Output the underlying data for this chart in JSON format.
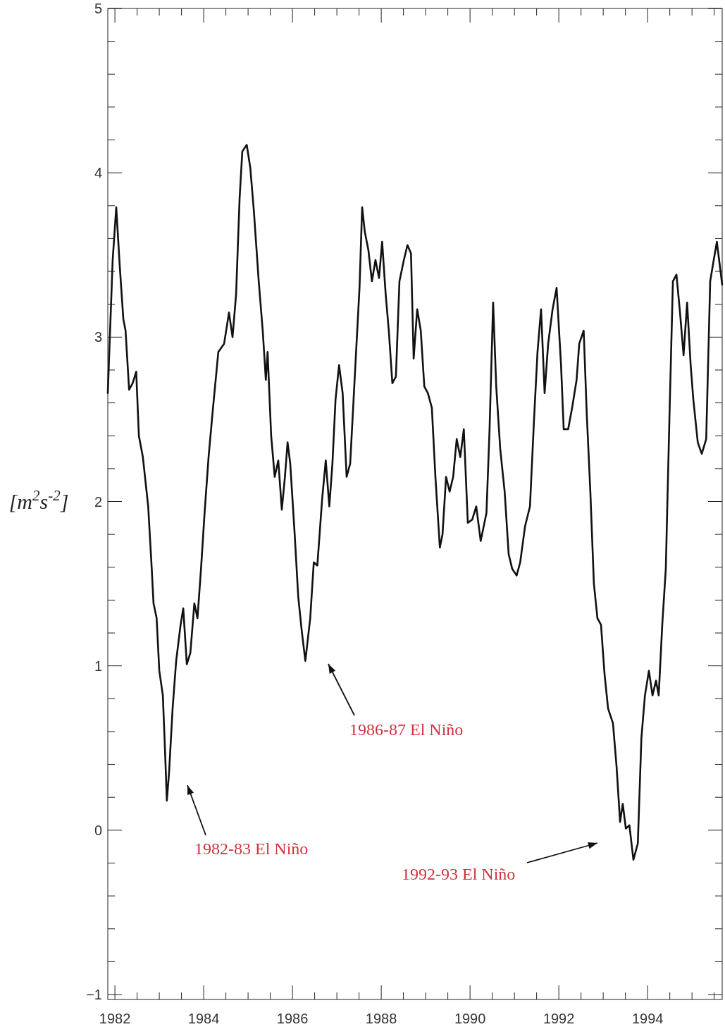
{
  "chart_data": {
    "type": "line",
    "ylabel": "[m$^{2}$s$^{-2}$]",
    "xlim": [
      1981.84,
      1995.68
    ],
    "ylim": [
      -1.03,
      5
    ],
    "xticks": [
      {
        "value": 1982,
        "label": "1982"
      },
      {
        "value": 1982.5,
        "label": null
      },
      {
        "value": 1983,
        "label": null
      },
      {
        "value": 1983.5,
        "label": null
      },
      {
        "value": 1984,
        "label": "1984"
      },
      {
        "value": 1984.5,
        "label": null
      },
      {
        "value": 1985,
        "label": null
      },
      {
        "value": 1985.5,
        "label": null
      },
      {
        "value": 1986,
        "label": "1986"
      },
      {
        "value": 1986.5,
        "label": null
      },
      {
        "value": 1987,
        "label": null
      },
      {
        "value": 1987.5,
        "label": null
      },
      {
        "value": 1988,
        "label": "1988"
      },
      {
        "value": 1988.5,
        "label": null
      },
      {
        "value": 1989,
        "label": null
      },
      {
        "value": 1989.5,
        "label": null
      },
      {
        "value": 1990,
        "label": "1990"
      },
      {
        "value": 1990.5,
        "label": null
      },
      {
        "value": 1991,
        "label": null
      },
      {
        "value": 1991.5,
        "label": null
      },
      {
        "value": 1992,
        "label": "1992"
      },
      {
        "value": 1992.5,
        "label": null
      },
      {
        "value": 1993,
        "label": null
      },
      {
        "value": 1993.5,
        "label": null
      },
      {
        "value": 1994,
        "label": "1994"
      },
      {
        "value": 1994.5,
        "label": null
      },
      {
        "value": 1995,
        "label": null
      },
      {
        "value": 1995.5,
        "label": null
      }
    ],
    "yticks": [
      {
        "value": -1,
        "label": "−1"
      },
      {
        "value": -0.8,
        "label": null
      },
      {
        "value": -0.6,
        "label": null
      },
      {
        "value": -0.4,
        "label": null
      },
      {
        "value": -0.2,
        "label": null
      },
      0,
      {
        "value": 0.2,
        "label": null
      },
      {
        "value": 0.4,
        "label": null
      },
      {
        "value": 0.6,
        "label": null
      },
      {
        "value": 0.8,
        "label": null
      },
      1,
      {
        "value": 1.2,
        "label": null
      },
      {
        "value": 1.4,
        "label": null
      },
      {
        "value": 1.6,
        "label": null
      },
      {
        "value": 1.8,
        "label": null
      },
      2,
      {
        "value": 2.2,
        "label": null
      },
      {
        "value": 2.4,
        "label": null
      },
      {
        "value": 2.6,
        "label": null
      },
      {
        "value": 2.8,
        "label": null
      },
      3,
      {
        "value": 3.2,
        "label": null
      },
      {
        "value": 3.4,
        "label": null
      },
      {
        "value": 3.6,
        "label": null
      },
      {
        "value": 3.8,
        "label": null
      },
      4,
      {
        "value": 4.2,
        "label": null
      },
      {
        "value": 4.4,
        "label": null
      },
      {
        "value": 4.6,
        "label": null
      },
      {
        "value": 4.8,
        "label": null
      },
      5
    ],
    "grid": false,
    "marker": "none",
    "line_style": "solid",
    "series": [
      {
        "color": "#111111",
        "x": [
          1981.84,
          1981.95,
          1982.03,
          1982.11,
          1982.19,
          1982.24,
          1982.32,
          1982.4,
          1982.48,
          1982.54,
          1982.63,
          1982.75,
          1982.83,
          1982.87,
          1982.94,
          1983.0,
          1983.08,
          1983.13,
          1983.17,
          1983.22,
          1983.3,
          1983.38,
          1983.48,
          1983.54,
          1983.62,
          1983.7,
          1983.79,
          1983.86,
          1983.94,
          1984.02,
          1984.11,
          1984.21,
          1984.33,
          1984.46,
          1984.57,
          1984.65,
          1984.73,
          1984.81,
          1984.87,
          1984.97,
          1985.05,
          1985.13,
          1985.24,
          1985.33,
          1985.4,
          1985.44,
          1985.52,
          1985.6,
          1985.68,
          1985.76,
          1985.83,
          1985.89,
          1985.95,
          1986.05,
          1986.13,
          1986.21,
          1986.29,
          1986.4,
          1986.48,
          1986.56,
          1986.67,
          1986.75,
          1986.83,
          1986.9,
          1986.97,
          1987.05,
          1987.13,
          1987.22,
          1987.3,
          1987.4,
          1987.51,
          1987.57,
          1987.63,
          1987.71,
          1987.79,
          1987.87,
          1987.95,
          1988.02,
          1988.1,
          1988.17,
          1988.25,
          1988.33,
          1988.41,
          1988.51,
          1988.59,
          1988.67,
          1988.73,
          1988.81,
          1988.89,
          1988.97,
          1989.05,
          1989.14,
          1989.22,
          1989.32,
          1989.38,
          1989.46,
          1989.54,
          1989.62,
          1989.7,
          1989.78,
          1989.86,
          1989.95,
          1990.05,
          1990.14,
          1990.24,
          1990.37,
          1990.44,
          1990.52,
          1990.59,
          1990.68,
          1990.78,
          1990.87,
          1990.95,
          1991.05,
          1991.13,
          1991.24,
          1991.35,
          1991.44,
          1991.52,
          1991.6,
          1991.68,
          1991.76,
          1991.86,
          1991.95,
          1992.05,
          1992.11,
          1992.21,
          1992.3,
          1992.4,
          1992.46,
          1992.56,
          1992.63,
          1992.71,
          1992.79,
          1992.87,
          1992.95,
          1993.03,
          1993.11,
          1993.22,
          1993.3,
          1993.38,
          1993.44,
          1993.51,
          1993.59,
          1993.68,
          1993.78,
          1993.86,
          1993.94,
          1994.03,
          1994.11,
          1994.19,
          1994.25,
          1994.33,
          1994.41,
          1994.49,
          1994.57,
          1994.65,
          1994.73,
          1994.81,
          1994.89,
          1994.97,
          1995.03,
          1995.13,
          1995.22,
          1995.32,
          1995.41,
          1995.49,
          1995.56,
          1995.68
        ],
        "values": [
          2.66,
          3.47,
          3.79,
          3.43,
          3.11,
          3.04,
          2.68,
          2.72,
          2.79,
          2.4,
          2.27,
          1.97,
          1.59,
          1.38,
          1.29,
          0.97,
          0.82,
          0.48,
          0.18,
          0.35,
          0.74,
          1.03,
          1.25,
          1.35,
          1.01,
          1.08,
          1.38,
          1.29,
          1.59,
          1.93,
          2.27,
          2.57,
          2.91,
          2.96,
          3.15,
          3.0,
          3.26,
          3.85,
          4.13,
          4.17,
          4.03,
          3.77,
          3.34,
          3.04,
          2.74,
          2.91,
          2.4,
          2.15,
          2.25,
          1.95,
          2.15,
          2.36,
          2.23,
          1.8,
          1.42,
          1.21,
          1.03,
          1.29,
          1.63,
          1.61,
          2.02,
          2.25,
          1.97,
          2.23,
          2.62,
          2.83,
          2.66,
          2.15,
          2.23,
          2.74,
          3.3,
          3.79,
          3.64,
          3.53,
          3.34,
          3.47,
          3.36,
          3.58,
          3.26,
          3.04,
          2.72,
          2.76,
          3.34,
          3.47,
          3.56,
          3.51,
          2.87,
          3.17,
          3.04,
          2.7,
          2.66,
          2.57,
          2.15,
          1.72,
          1.8,
          2.15,
          2.06,
          2.15,
          2.38,
          2.27,
          2.44,
          1.87,
          1.89,
          1.97,
          1.76,
          1.93,
          2.44,
          3.21,
          2.7,
          2.32,
          2.06,
          1.68,
          1.59,
          1.55,
          1.63,
          1.85,
          1.97,
          2.49,
          2.91,
          3.17,
          2.66,
          2.96,
          3.17,
          3.3,
          2.83,
          2.44,
          2.44,
          2.57,
          2.74,
          2.96,
          3.04,
          2.53,
          2.06,
          1.5,
          1.29,
          1.25,
          0.95,
          0.74,
          0.65,
          0.39,
          0.05,
          0.16,
          0.01,
          0.03,
          -0.18,
          -0.08,
          0.56,
          0.82,
          0.97,
          0.82,
          0.91,
          0.82,
          1.25,
          1.59,
          2.49,
          3.34,
          3.38,
          3.15,
          2.89,
          3.21,
          2.83,
          2.62,
          2.36,
          2.29,
          2.38,
          3.34,
          3.47,
          3.58,
          3.32
        ]
      }
    ],
    "annotations": [
      "1982-83 El Niño",
      "1986-87 El Niño",
      "1992-93 El Niño"
    ]
  }
}
